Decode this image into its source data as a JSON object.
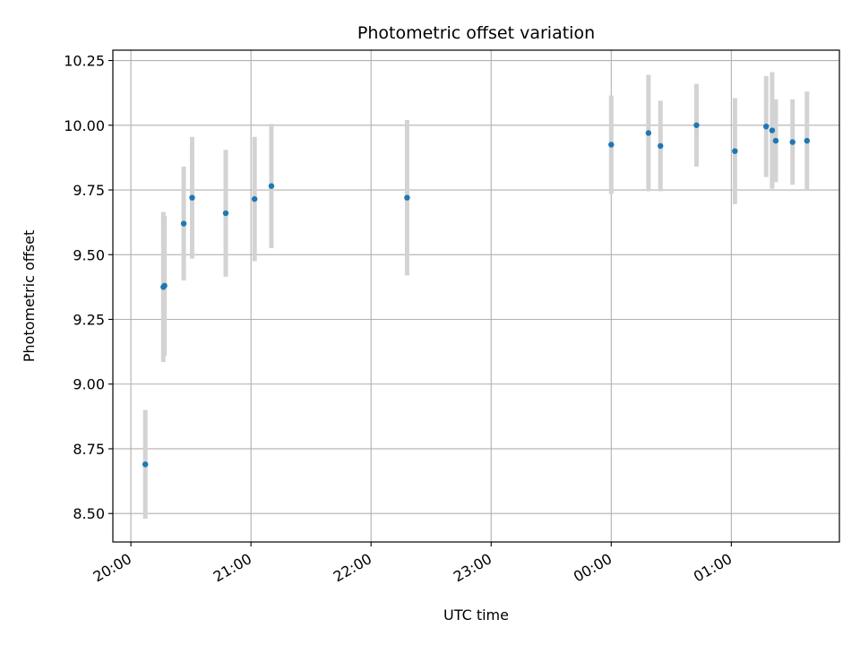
{
  "chart_data": {
    "type": "scatter",
    "title": "Photometric offset variation",
    "xlabel": "UTC time",
    "ylabel": "Photometric offset",
    "grid": true,
    "x_unit": "hours (UTC, continuing past midnight)",
    "xlim": [
      19.85,
      25.9
    ],
    "ylim": [
      8.39,
      10.29
    ],
    "x_ticks": [
      {
        "value": 20,
        "label": "20:00"
      },
      {
        "value": 21,
        "label": "21:00"
      },
      {
        "value": 22,
        "label": "22:00"
      },
      {
        "value": 23,
        "label": "23:00"
      },
      {
        "value": 24,
        "label": "00:00"
      },
      {
        "value": 25,
        "label": "01:00"
      }
    ],
    "y_ticks": [
      {
        "value": 8.5,
        "label": "8.50"
      },
      {
        "value": 8.75,
        "label": "8.75"
      },
      {
        "value": 9.0,
        "label": "9.00"
      },
      {
        "value": 9.25,
        "label": "9.25"
      },
      {
        "value": 9.5,
        "label": "9.50"
      },
      {
        "value": 9.75,
        "label": "9.75"
      },
      {
        "value": 10.0,
        "label": "10.00"
      },
      {
        "value": 10.25,
        "label": "10.25"
      }
    ],
    "point_color": "#1f77b4",
    "errorbar_color": "#d3d3d3",
    "points": [
      {
        "x": 20.12,
        "y": 8.69,
        "err": 0.21
      },
      {
        "x": 20.27,
        "y": 9.375,
        "err": 0.29
      },
      {
        "x": 20.28,
        "y": 9.38,
        "err": 0.27
      },
      {
        "x": 20.44,
        "y": 9.62,
        "err": 0.22
      },
      {
        "x": 20.51,
        "y": 9.72,
        "err": 0.235
      },
      {
        "x": 20.79,
        "y": 9.66,
        "err": 0.245
      },
      {
        "x": 21.03,
        "y": 9.715,
        "err": 0.24
      },
      {
        "x": 21.17,
        "y": 9.765,
        "err": 0.24
      },
      {
        "x": 22.3,
        "y": 9.72,
        "err": 0.3
      },
      {
        "x": 24.0,
        "y": 9.925,
        "err": 0.19
      },
      {
        "x": 24.31,
        "y": 9.97,
        "err": 0.225
      },
      {
        "x": 24.41,
        "y": 9.92,
        "err": 0.175
      },
      {
        "x": 24.71,
        "y": 10.0,
        "err": 0.16
      },
      {
        "x": 25.03,
        "y": 9.9,
        "err": 0.205
      },
      {
        "x": 25.29,
        "y": 9.995,
        "err": 0.195
      },
      {
        "x": 25.34,
        "y": 9.98,
        "err": 0.225
      },
      {
        "x": 25.37,
        "y": 9.94,
        "err": 0.16
      },
      {
        "x": 25.51,
        "y": 9.935,
        "err": 0.165
      },
      {
        "x": 25.63,
        "y": 9.94,
        "err": 0.19
      }
    ]
  }
}
